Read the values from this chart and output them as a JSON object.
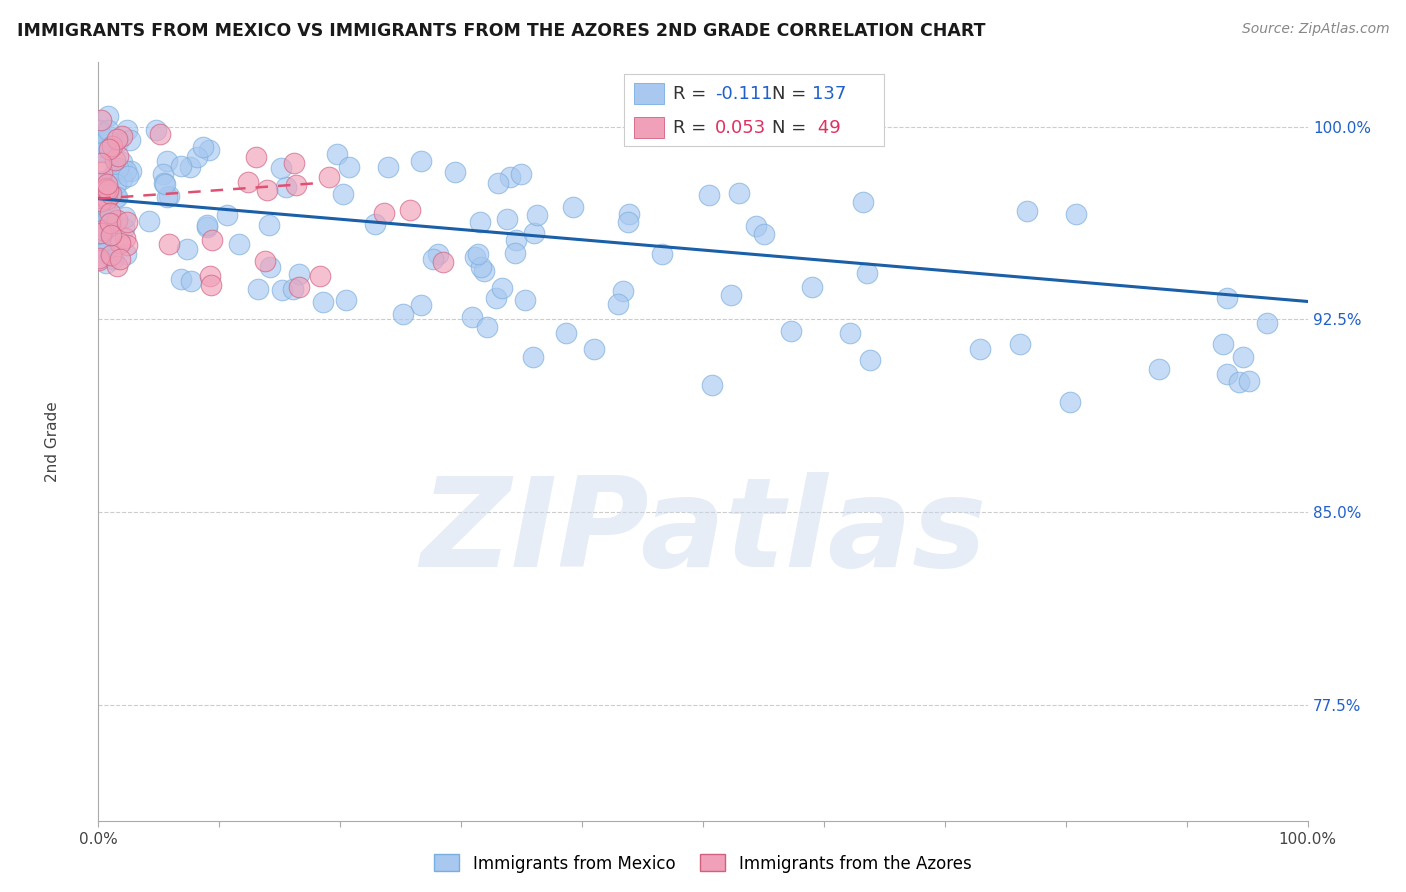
{
  "title": "IMMIGRANTS FROM MEXICO VS IMMIGRANTS FROM THE AZORES 2ND GRADE CORRELATION CHART",
  "source": "Source: ZipAtlas.com",
  "ylabel": "2nd Grade",
  "yright_labels": [
    "77.5%",
    "85.0%",
    "92.5%",
    "100.0%"
  ],
  "yright_values": [
    0.775,
    0.85,
    0.925,
    1.0
  ],
  "xlim": [
    0.0,
    1.0
  ],
  "ylim": [
    0.73,
    1.025
  ],
  "legend_R1": "-0.111",
  "legend_N1": "137",
  "legend_R2": "0.053",
  "legend_N2": "49",
  "watermark": "ZIPatlas",
  "background_color": "#ffffff",
  "grid_color": "#cccccc",
  "blue_scatter_color": "#a8c8f0",
  "pink_scatter_color": "#f0a0b8",
  "blue_line_color": "#1a5fa8",
  "pink_line_color": "#e05070",
  "blue_line_start_x": 0.0,
  "blue_line_start_y": 0.972,
  "blue_line_end_x": 1.0,
  "blue_line_end_y": 0.932,
  "pink_line_start_x": 0.0,
  "pink_line_start_y": 0.972,
  "pink_line_end_x": 0.18,
  "pink_line_end_y": 0.978,
  "legend_label1": "Immigrants from Mexico",
  "legend_label2": "Immigrants from the Azores"
}
